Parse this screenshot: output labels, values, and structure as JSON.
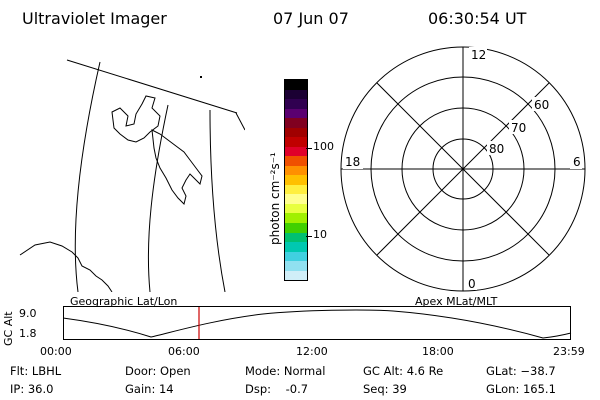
{
  "header": {
    "instrument": "Ultraviolet Imager",
    "date": "07 Jun 07",
    "time": "06:30:54 UT"
  },
  "colorbar": {
    "label": "photon cm⁻²s⁻¹",
    "tick_labels": [
      "100",
      "10"
    ],
    "colors": [
      "#000000",
      "#1b0033",
      "#300050",
      "#5a0070",
      "#800020",
      "#a00000",
      "#c00000",
      "#e0002a",
      "#f05000",
      "#ff9000",
      "#ffc000",
      "#ffef40",
      "#ffff90",
      "#e8ff40",
      "#a0f000",
      "#40d000",
      "#00c070",
      "#00c8b0",
      "#40d0e0",
      "#90e0f0",
      "#d0eef8"
    ]
  },
  "polar": {
    "mlt_labels": [
      "12",
      "18",
      "6",
      "0"
    ],
    "lat_labels": [
      "60",
      "70",
      "80"
    ]
  },
  "timeline": {
    "left_label": "Geographic Lat/Lon",
    "right_label": "Apex MLat/MLT",
    "axis_title": "GC Alt",
    "y_labels": [
      "9.0",
      "1.8"
    ],
    "x_labels": [
      "00:00",
      "06:00",
      "12:00",
      "18:00",
      "23:59"
    ],
    "marker_color": "#cc0000"
  },
  "footer": {
    "flt": "Flt: LBHL",
    "ip": "IP: 36.0",
    "door": "Door: Open",
    "gain": "Gain: 14",
    "mode": "Mode: Normal",
    "dsp": "Dsp:    -0.7",
    "gcalt": "GC Alt: 4.6 Re",
    "seq": "Seq: 39",
    "glat": "GLat: −38.7",
    "glon": "GLon: 165.1"
  }
}
